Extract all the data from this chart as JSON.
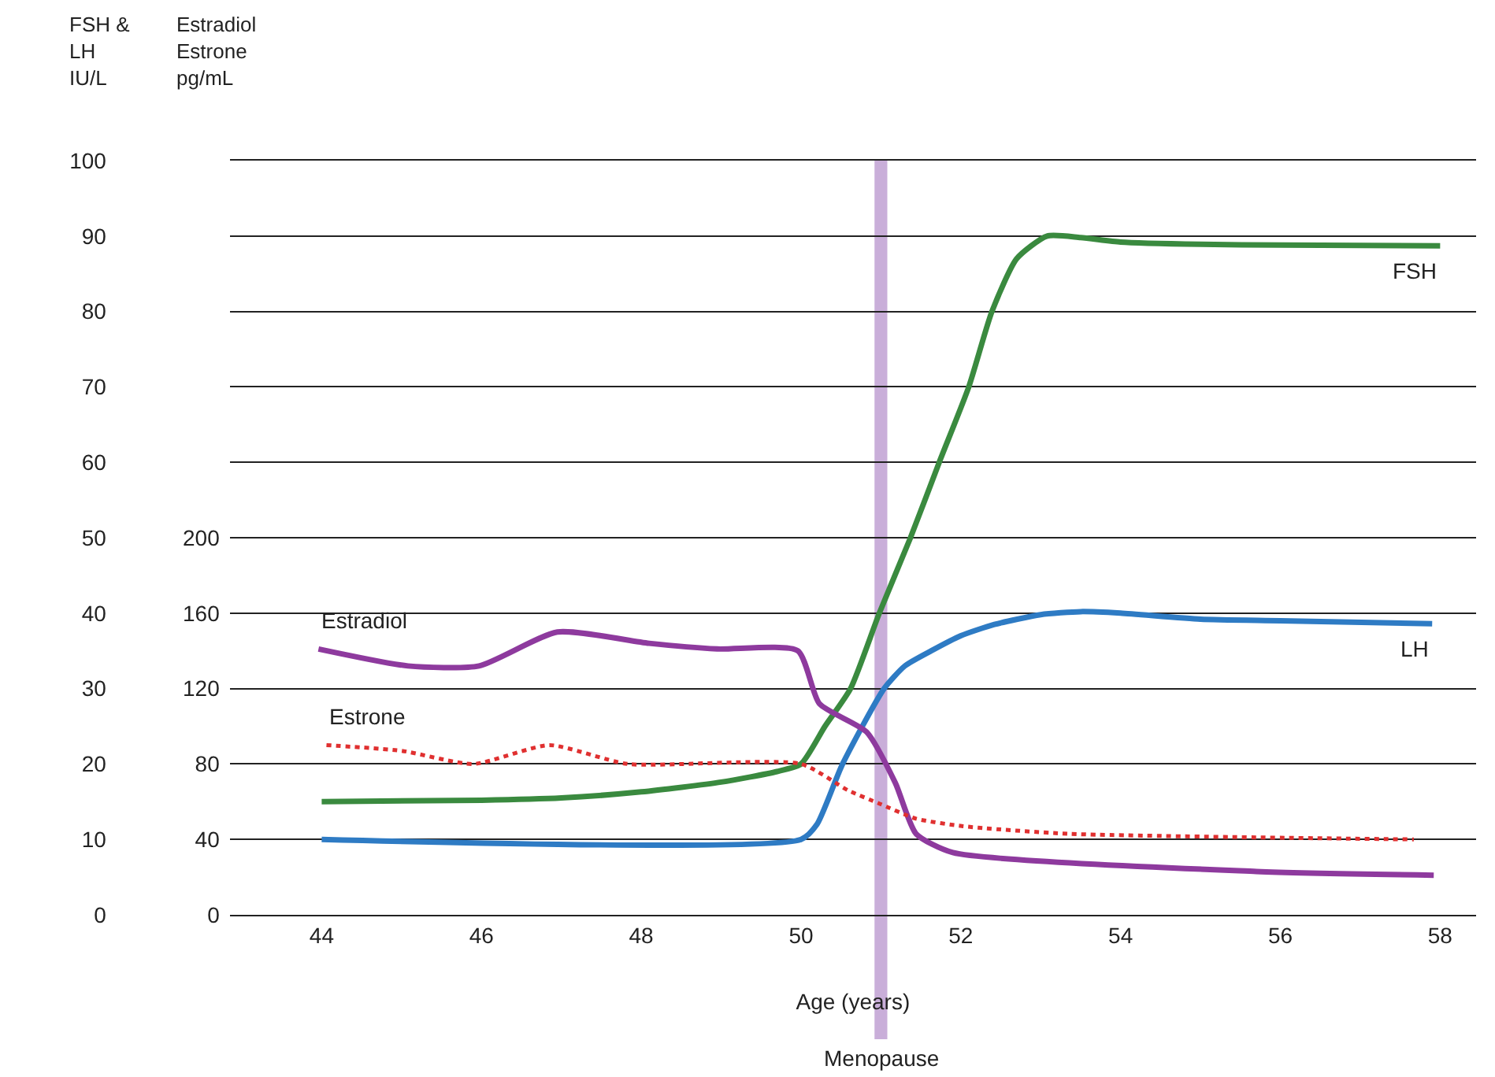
{
  "chart_data": {
    "type": "line",
    "xlabel": "Age (years)",
    "ylabel": "FSH &\nLH\nIU/L",
    "y2label": "Estradiol\nEstrone\npg/mL",
    "xlim": [
      42.85,
      58.45
    ],
    "xticks": [
      44,
      46,
      48,
      50,
      52,
      54,
      56,
      58
    ],
    "ylim": [
      0,
      100
    ],
    "yticks": [
      0,
      10,
      20,
      30,
      40,
      50,
      60,
      70,
      80,
      90,
      100
    ],
    "y2lim": [
      0,
      400
    ],
    "y2ticks": [
      0,
      40,
      80,
      120,
      160,
      200
    ],
    "grid": "y",
    "legend": false,
    "marker": "none",
    "bands": [
      {
        "axis": "x",
        "from": 50.92,
        "to": 51.08,
        "label": "Menopause",
        "color": "#c9aed9"
      }
    ],
    "series": [
      {
        "name": "FSH",
        "color": "#3a8a3f",
        "line_style": "solid",
        "x": [
          44,
          46,
          47,
          48,
          49,
          49.7,
          50,
          50.3,
          50.62,
          50.98,
          51.37,
          51.73,
          52.1,
          52.39,
          52.7,
          53.08,
          53.5,
          54,
          55,
          56,
          58
        ],
        "values": [
          15,
          15.2,
          15.5,
          16.3,
          17.6,
          19,
          20,
          25,
          30,
          40,
          50,
          60,
          70,
          80,
          87,
          90,
          89.8,
          89.2,
          88.9,
          88.8,
          88.7
        ]
      },
      {
        "name": "LH",
        "color": "#2e7bc4",
        "line_style": "solid",
        "x": [
          44,
          50,
          50.2,
          50.52,
          51.04,
          51.3,
          51.63,
          52,
          52.42,
          53,
          53.5,
          54,
          55,
          56,
          57.9
        ],
        "values": [
          10,
          10,
          12,
          20,
          30,
          33,
          35,
          37,
          38.5,
          39.8,
          40.2,
          40,
          39.2,
          39,
          38.6
        ]
      },
      {
        "name": "Estradiol",
        "color": "#8e3a9e",
        "line_style": "solid",
        "axis": "y2",
        "x": [
          43.96,
          45.08,
          45.97,
          46.95,
          48.1,
          48.95,
          49.96,
          50.23,
          50.82,
          51.18,
          51.44,
          51.9,
          55.7,
          57.92
        ],
        "values": [
          141,
          132,
          132,
          150,
          144,
          141,
          140,
          112,
          97,
          70,
          43,
          33,
          23,
          21
        ]
      },
      {
        "name": "Estrone",
        "color": "#e03030",
        "line_style": "dotted",
        "axis": "y2",
        "x": [
          44.06,
          45,
          45.9,
          46.85,
          47.83,
          50,
          50.59,
          50.98,
          51.44,
          52.03,
          53.34,
          57.67
        ],
        "values": [
          90,
          87,
          80,
          90,
          80,
          80,
          66,
          59,
          51,
          47,
          43,
          40
        ]
      }
    ]
  }
}
